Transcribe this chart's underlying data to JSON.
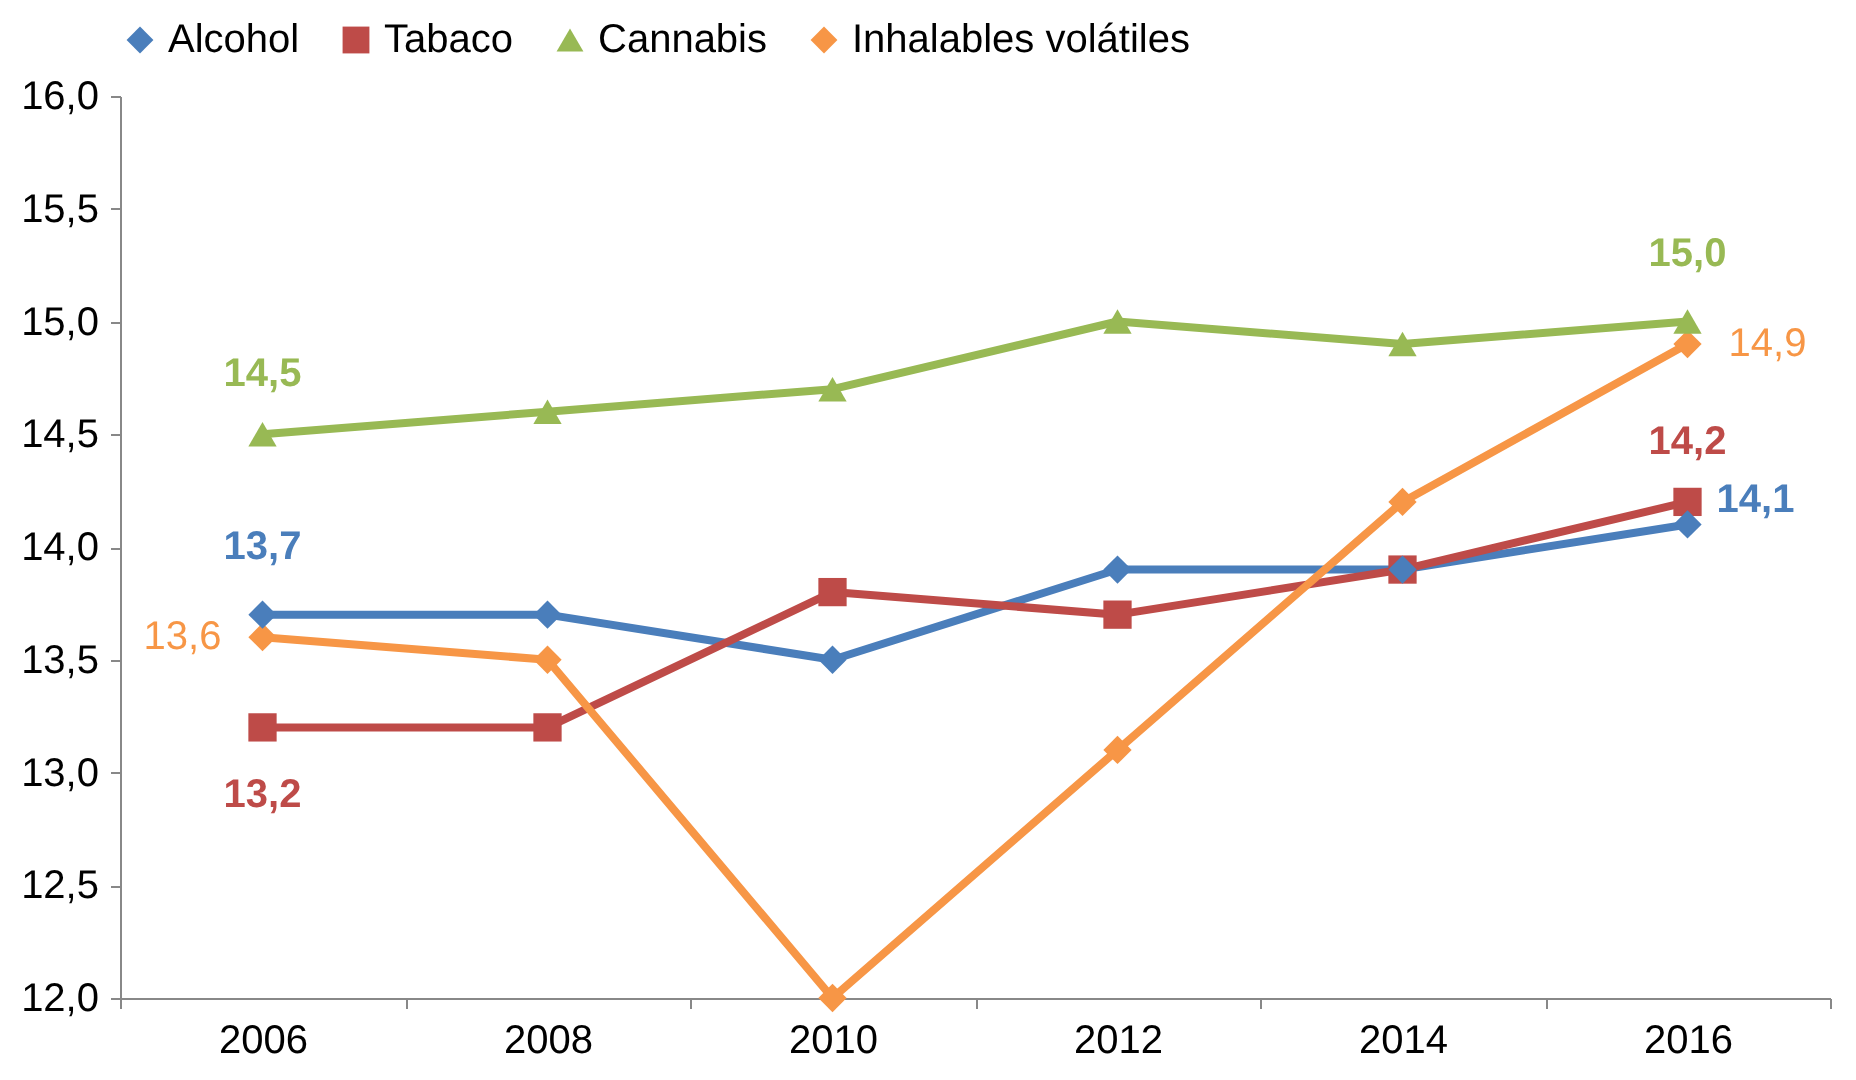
{
  "chart_data": {
    "type": "line",
    "categories": [
      "2006",
      "2008",
      "2010",
      "2012",
      "2014",
      "2016"
    ],
    "ylim": [
      12,
      16
    ],
    "yticks": [
      {
        "value": 12,
        "label": "12,0"
      },
      {
        "value": 12.5,
        "label": "12,5"
      },
      {
        "value": 13,
        "label": "13,0"
      },
      {
        "value": 13.5,
        "label": "13,5"
      },
      {
        "value": 14,
        "label": "14,0"
      },
      {
        "value": 14.5,
        "label": "14,5"
      },
      {
        "value": 15,
        "label": "15,0"
      },
      {
        "value": 15.5,
        "label": "15,5"
      },
      {
        "value": 16,
        "label": "16,0"
      }
    ],
    "grid": false,
    "legend": "top",
    "series": [
      {
        "name": "Alcohol",
        "color": "#4a7ebb",
        "marker": "diamond",
        "values": [
          13.7,
          13.7,
          13.5,
          13.9,
          13.9,
          14.1
        ],
        "value_labels": [
          "13,7",
          null,
          null,
          null,
          null,
          "14,1"
        ]
      },
      {
        "name": "Tabaco",
        "color": "#be4b48",
        "marker": "square",
        "values": [
          13.2,
          13.2,
          13.8,
          13.7,
          13.9,
          14.2
        ],
        "value_labels": [
          "13,2",
          null,
          null,
          null,
          null,
          "14,2"
        ]
      },
      {
        "name": "Cannabis",
        "color": "#98b954",
        "marker": "triangle",
        "values": [
          14.5,
          14.6,
          14.7,
          15.0,
          14.9,
          15.0
        ],
        "value_labels": [
          "14,5",
          null,
          null,
          null,
          null,
          "15,0"
        ]
      },
      {
        "name": "Inhalables volátiles",
        "color": "#f79646",
        "marker": "diamond",
        "values": [
          13.6,
          13.5,
          12.0,
          13.1,
          14.2,
          14.9
        ],
        "value_labels": [
          "13,6",
          null,
          null,
          null,
          null,
          "14,9"
        ]
      }
    ]
  }
}
